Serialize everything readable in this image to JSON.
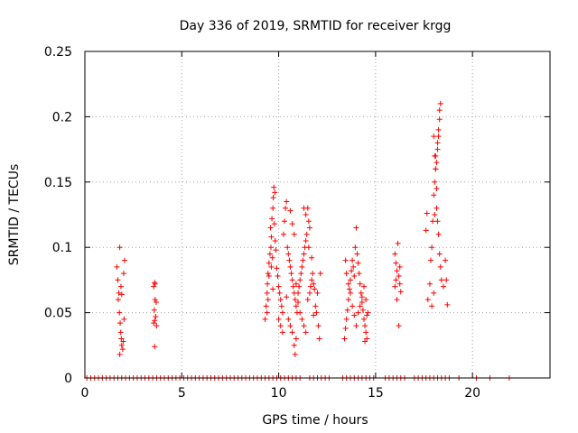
{
  "chart_data": {
    "type": "scatter",
    "title": "Day 336 of 2019, SRMTID for receiver krgg",
    "xlabel": "GPS time / hours",
    "ylabel": "SRMTID / TECUs",
    "xlim": [
      0,
      24
    ],
    "ylim": [
      0,
      0.25
    ],
    "xticks": [
      0,
      5,
      10,
      15,
      20
    ],
    "yticks": [
      0,
      0.05,
      0.1,
      0.15,
      0.2,
      0.25
    ],
    "xtick_labels": [
      "0",
      "5",
      "10",
      "15",
      "20"
    ],
    "ytick_labels": [
      "0",
      "0.05",
      "0.1",
      "0.15",
      "0.2",
      "0.25"
    ],
    "grid": true,
    "marker": "+",
    "series": [
      {
        "name": "SRMTID",
        "color": "#ff0000",
        "points": [
          [
            1.65,
            0.085
          ],
          [
            1.7,
            0.075
          ],
          [
            1.75,
            0.065
          ],
          [
            1.8,
            0.1
          ],
          [
            1.72,
            0.06
          ],
          [
            1.78,
            0.05
          ],
          [
            1.82,
            0.042
          ],
          [
            1.85,
            0.035
          ],
          [
            1.88,
            0.03
          ],
          [
            1.9,
            0.025
          ],
          [
            1.95,
            0.022
          ],
          [
            1.8,
            0.018
          ],
          [
            1.86,
            0.07
          ],
          [
            1.9,
            0.064
          ],
          [
            2.0,
            0.08
          ],
          [
            2.05,
            0.09
          ],
          [
            2.02,
            0.045
          ],
          [
            1.98,
            0.028
          ],
          [
            3.55,
            0.07
          ],
          [
            3.6,
            0.073
          ],
          [
            3.62,
            0.06
          ],
          [
            3.58,
            0.052
          ],
          [
            3.65,
            0.047
          ],
          [
            3.6,
            0.044
          ],
          [
            3.7,
            0.04
          ],
          [
            3.55,
            0.042
          ],
          [
            3.6,
            0.024
          ],
          [
            3.68,
            0.058
          ],
          [
            3.62,
            0.072
          ],
          [
            9.3,
            0.045
          ],
          [
            9.35,
            0.055
          ],
          [
            9.4,
            0.065
          ],
          [
            9.42,
            0.072
          ],
          [
            9.45,
            0.08
          ],
          [
            9.5,
            0.088
          ],
          [
            9.55,
            0.095
          ],
          [
            9.6,
            0.1
          ],
          [
            9.62,
            0.108
          ],
          [
            9.58,
            0.115
          ],
          [
            9.65,
            0.122
          ],
          [
            9.7,
            0.13
          ],
          [
            9.72,
            0.138
          ],
          [
            9.75,
            0.146
          ],
          [
            9.8,
            0.142
          ],
          [
            9.78,
            0.118
          ],
          [
            9.82,
            0.105
          ],
          [
            9.68,
            0.092
          ],
          [
            9.62,
            0.085
          ],
          [
            9.5,
            0.078
          ],
          [
            9.45,
            0.06
          ],
          [
            9.4,
            0.05
          ],
          [
            9.85,
            0.098
          ],
          [
            9.9,
            0.084
          ],
          [
            9.95,
            0.078
          ],
          [
            10.0,
            0.07
          ],
          [
            10.05,
            0.065
          ],
          [
            10.1,
            0.06
          ],
          [
            10.15,
            0.055
          ],
          [
            10.2,
            0.05
          ],
          [
            10.0,
            0.045
          ],
          [
            10.1,
            0.04
          ],
          [
            10.2,
            0.035
          ],
          [
            10.25,
            0.11
          ],
          [
            10.3,
            0.12
          ],
          [
            10.35,
            0.13
          ],
          [
            10.4,
            0.135
          ],
          [
            10.45,
            0.1
          ],
          [
            10.5,
            0.095
          ],
          [
            10.55,
            0.09
          ],
          [
            10.6,
            0.085
          ],
          [
            10.65,
            0.08
          ],
          [
            10.7,
            0.075
          ],
          [
            10.75,
            0.07
          ],
          [
            10.8,
            0.065
          ],
          [
            10.85,
            0.06
          ],
          [
            10.9,
            0.055
          ],
          [
            10.95,
            0.05
          ],
          [
            10.6,
            0.128
          ],
          [
            10.7,
            0.118
          ],
          [
            10.8,
            0.11
          ],
          [
            10.5,
            0.045
          ],
          [
            10.6,
            0.04
          ],
          [
            10.7,
            0.035
          ],
          [
            10.8,
            0.025
          ],
          [
            10.85,
            0.018
          ],
          [
            10.9,
            0.03
          ],
          [
            11.0,
            0.065
          ],
          [
            11.05,
            0.07
          ],
          [
            11.1,
            0.075
          ],
          [
            11.15,
            0.08
          ],
          [
            11.2,
            0.085
          ],
          [
            11.25,
            0.09
          ],
          [
            11.3,
            0.095
          ],
          [
            11.35,
            0.1
          ],
          [
            11.4,
            0.105
          ],
          [
            11.45,
            0.11
          ],
          [
            11.5,
            0.13
          ],
          [
            11.55,
            0.12
          ],
          [
            11.6,
            0.115
          ],
          [
            11.3,
            0.13
          ],
          [
            11.4,
            0.125
          ],
          [
            11.1,
            0.05
          ],
          [
            11.2,
            0.045
          ],
          [
            11.3,
            0.04
          ],
          [
            11.4,
            0.035
          ],
          [
            11.5,
            0.06
          ],
          [
            11.6,
            0.065
          ],
          [
            11.65,
            0.07
          ],
          [
            11.7,
            0.075
          ],
          [
            11.75,
            0.08
          ],
          [
            11.8,
            0.072
          ],
          [
            11.85,
            0.068
          ],
          [
            11.9,
            0.055
          ],
          [
            11.95,
            0.05
          ],
          [
            12.0,
            0.065
          ],
          [
            12.05,
            0.04
          ],
          [
            12.1,
            0.03
          ],
          [
            12.15,
            0.08
          ],
          [
            11.55,
            0.1
          ],
          [
            11.7,
            0.092
          ],
          [
            9.7,
            0.068
          ],
          [
            10.4,
            0.062
          ],
          [
            10.9,
            0.072
          ],
          [
            11.0,
            0.058
          ],
          [
            11.8,
            0.048
          ],
          [
            13.4,
            0.03
          ],
          [
            13.45,
            0.038
          ],
          [
            13.5,
            0.045
          ],
          [
            13.55,
            0.052
          ],
          [
            13.6,
            0.06
          ],
          [
            13.65,
            0.068
          ],
          [
            13.7,
            0.075
          ],
          [
            13.75,
            0.082
          ],
          [
            13.8,
            0.09
          ],
          [
            13.85,
            0.085
          ],
          [
            13.9,
            0.078
          ],
          [
            13.95,
            0.1
          ],
          [
            14.0,
            0.115
          ],
          [
            14.05,
            0.095
          ],
          [
            14.1,
            0.088
          ],
          [
            14.15,
            0.08
          ],
          [
            14.2,
            0.072
          ],
          [
            14.25,
            0.065
          ],
          [
            14.3,
            0.058
          ],
          [
            14.35,
            0.052
          ],
          [
            14.4,
            0.045
          ],
          [
            14.45,
            0.04
          ],
          [
            14.5,
            0.035
          ],
          [
            14.55,
            0.03
          ],
          [
            14.6,
            0.05
          ],
          [
            14.5,
            0.06
          ],
          [
            14.4,
            0.07
          ],
          [
            14.3,
            0.062
          ],
          [
            14.2,
            0.055
          ],
          [
            14.1,
            0.05
          ],
          [
            13.5,
            0.08
          ],
          [
            13.6,
            0.072
          ],
          [
            13.7,
            0.065
          ],
          [
            13.8,
            0.055
          ],
          [
            13.9,
            0.048
          ],
          [
            14.0,
            0.04
          ],
          [
            14.45,
            0.028
          ],
          [
            14.55,
            0.048
          ],
          [
            13.45,
            0.09
          ],
          [
            16.0,
            0.095
          ],
          [
            16.05,
            0.088
          ],
          [
            16.1,
            0.082
          ],
          [
            16.15,
            0.103
          ],
          [
            16.2,
            0.078
          ],
          [
            16.25,
            0.072
          ],
          [
            16.3,
            0.066
          ],
          [
            16.1,
            0.06
          ],
          [
            16.2,
            0.04
          ],
          [
            16.05,
            0.075
          ],
          [
            16.0,
            0.07
          ],
          [
            16.25,
            0.085
          ],
          [
            17.6,
            0.113
          ],
          [
            17.65,
            0.126
          ],
          [
            17.7,
            0.06
          ],
          [
            17.8,
            0.072
          ],
          [
            17.85,
            0.09
          ],
          [
            17.9,
            0.1
          ],
          [
            17.95,
            0.12
          ],
          [
            18.0,
            0.14
          ],
          [
            18.05,
            0.15
          ],
          [
            18.1,
            0.16
          ],
          [
            18.15,
            0.165
          ],
          [
            18.2,
            0.175
          ],
          [
            18.25,
            0.185
          ],
          [
            18.3,
            0.198
          ],
          [
            18.35,
            0.21
          ],
          [
            18.3,
            0.205
          ],
          [
            18.25,
            0.19
          ],
          [
            18.2,
            0.18
          ],
          [
            18.1,
            0.17
          ],
          [
            18.0,
            0.185
          ],
          [
            18.05,
            0.17
          ],
          [
            18.15,
            0.13
          ],
          [
            18.2,
            0.12
          ],
          [
            18.25,
            0.11
          ],
          [
            18.3,
            0.095
          ],
          [
            18.35,
            0.085
          ],
          [
            18.4,
            0.075
          ],
          [
            18.5,
            0.07
          ],
          [
            18.6,
            0.09
          ],
          [
            18.65,
            0.075
          ],
          [
            18.7,
            0.056
          ],
          [
            18.0,
            0.065
          ],
          [
            17.9,
            0.055
          ],
          [
            18.1,
            0.16
          ],
          [
            18.15,
            0.145
          ],
          [
            18.05,
            0.125
          ],
          [
            0.1,
            0
          ],
          [
            0.3,
            0
          ],
          [
            0.5,
            0
          ],
          [
            0.7,
            0
          ],
          [
            0.9,
            0
          ],
          [
            1.1,
            0
          ],
          [
            1.3,
            0
          ],
          [
            1.5,
            0
          ],
          [
            1.7,
            0
          ],
          [
            1.9,
            0
          ],
          [
            2.1,
            0
          ],
          [
            2.3,
            0
          ],
          [
            2.5,
            0
          ],
          [
            2.7,
            0
          ],
          [
            2.9,
            0
          ],
          [
            3.1,
            0
          ],
          [
            3.3,
            0
          ],
          [
            3.5,
            0
          ],
          [
            3.7,
            0
          ],
          [
            3.9,
            0
          ],
          [
            4.1,
            0
          ],
          [
            4.3,
            0
          ],
          [
            4.5,
            0
          ],
          [
            4.7,
            0
          ],
          [
            4.9,
            0
          ],
          [
            5.1,
            0
          ],
          [
            5.3,
            0
          ],
          [
            5.5,
            0
          ],
          [
            5.7,
            0
          ],
          [
            5.9,
            0
          ],
          [
            6.1,
            0
          ],
          [
            6.3,
            0
          ],
          [
            6.5,
            0
          ],
          [
            6.7,
            0
          ],
          [
            6.9,
            0
          ],
          [
            7.1,
            0
          ],
          [
            7.3,
            0
          ],
          [
            7.5,
            0
          ],
          [
            7.7,
            0
          ],
          [
            7.9,
            0
          ],
          [
            8.1,
            0
          ],
          [
            8.3,
            0
          ],
          [
            8.5,
            0
          ],
          [
            8.7,
            0
          ],
          [
            8.9,
            0
          ],
          [
            9.1,
            0
          ],
          [
            9.3,
            0
          ],
          [
            9.5,
            0
          ],
          [
            9.7,
            0
          ],
          [
            9.9,
            0
          ],
          [
            10.1,
            0
          ],
          [
            10.3,
            0
          ],
          [
            10.5,
            0
          ],
          [
            10.7,
            0
          ],
          [
            10.9,
            0
          ],
          [
            11.1,
            0
          ],
          [
            11.6,
            0
          ],
          [
            11.8,
            0
          ],
          [
            12.0,
            0
          ],
          [
            12.2,
            0
          ],
          [
            12.4,
            0
          ],
          [
            12.6,
            0
          ],
          [
            13.3,
            0
          ],
          [
            13.5,
            0
          ],
          [
            13.7,
            0
          ],
          [
            13.9,
            0
          ],
          [
            14.1,
            0
          ],
          [
            14.3,
            0
          ],
          [
            14.5,
            0
          ],
          [
            14.7,
            0
          ],
          [
            14.9,
            0
          ],
          [
            15.5,
            0
          ],
          [
            15.7,
            0
          ],
          [
            15.9,
            0
          ],
          [
            16.1,
            0
          ],
          [
            16.3,
            0
          ],
          [
            16.5,
            0
          ],
          [
            17.0,
            0
          ],
          [
            17.2,
            0
          ],
          [
            17.4,
            0
          ],
          [
            17.6,
            0
          ],
          [
            17.8,
            0
          ],
          [
            18.0,
            0
          ],
          [
            18.2,
            0
          ],
          [
            18.4,
            0
          ],
          [
            18.6,
            0
          ],
          [
            18.8,
            0
          ],
          [
            19.3,
            0
          ],
          [
            20.2,
            0
          ],
          [
            20.9,
            0
          ],
          [
            21.9,
            0
          ]
        ]
      }
    ]
  }
}
